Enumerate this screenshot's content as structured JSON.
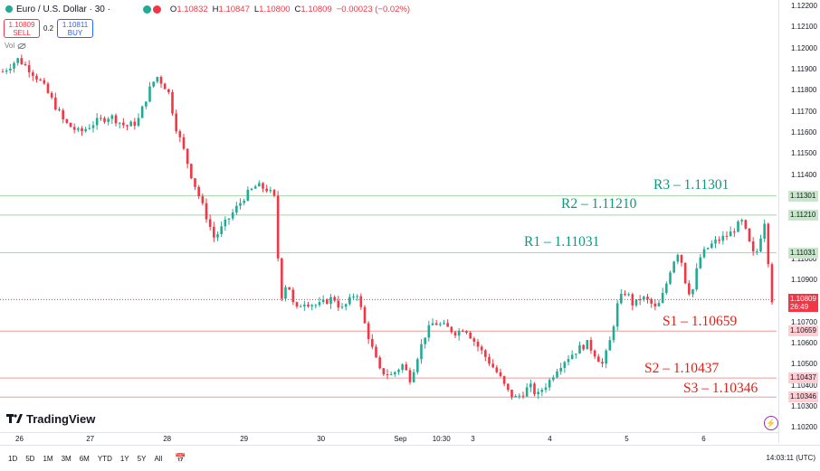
{
  "header": {
    "title": "Euro / U.S. Dollar · 30 ·",
    "ohlc": [
      {
        "label": "O",
        "value": "1.10832"
      },
      {
        "label": "H",
        "value": "1.10847"
      },
      {
        "label": "L",
        "value": "1.10800"
      },
      {
        "label": "C",
        "value": "1.10809"
      },
      {
        "label": "",
        "value": "−0.00023 (−0.02%)"
      }
    ],
    "sell_price": "1.10809",
    "sell_label": "SELL",
    "buy_price": "1.10811",
    "buy_label": "BUY",
    "spread": "0.2",
    "vol_label": "Vol"
  },
  "brand": {
    "name": "TradingView"
  },
  "bottom_bar": {
    "ranges": [
      "1D",
      "5D",
      "1M",
      "3M",
      "6M",
      "YTD",
      "1Y",
      "5Y",
      "All"
    ],
    "clock": "14:03:11 (UTC)"
  },
  "colors": {
    "up": "#22ab94",
    "down": "#f23645",
    "resistance": "#089981",
    "support": "#e32017"
  },
  "chart_data": {
    "type": "candlestick",
    "title": "Euro / U.S. Dollar · 30",
    "ylim": [
      1.1018,
      1.1223
    ],
    "y_ticks": [
      "1.12200",
      "1.12100",
      "1.12000",
      "1.11900",
      "1.11800",
      "1.11700",
      "1.11600",
      "1.11500",
      "1.11400",
      "1.11200",
      "1.11000",
      "1.10900",
      "1.10700",
      "1.10600",
      "1.10500",
      "1.10400",
      "1.10300",
      "1.10200"
    ],
    "x_labels": [
      {
        "label": "26",
        "pos": 0.0
      },
      {
        "label": "27",
        "pos": 0.092
      },
      {
        "label": "28",
        "pos": 0.192
      },
      {
        "label": "29",
        "pos": 0.292
      },
      {
        "label": "30",
        "pos": 0.392
      },
      {
        "label": "Sep",
        "pos": 0.492
      },
      {
        "label": "10:30",
        "pos": 0.542
      },
      {
        "label": "3",
        "pos": 0.592
      },
      {
        "label": "4",
        "pos": 0.692
      },
      {
        "label": "5",
        "pos": 0.792
      },
      {
        "label": "6",
        "pos": 0.892
      }
    ],
    "levels": [
      {
        "name": "R3",
        "label": "R3 – 1.11301",
        "value": 1.11301,
        "tag": "1.11301",
        "kind": "resistance"
      },
      {
        "name": "R2",
        "label": "R2 – 1.11210",
        "value": 1.1121,
        "tag": "1.11210",
        "kind": "resistance"
      },
      {
        "name": "R1",
        "label": "R1 – 1.11031",
        "value": 1.11031,
        "tag": "1.11031",
        "kind": "resistance"
      },
      {
        "name": "S1",
        "label": "S1 – 1.10659",
        "value": 1.10659,
        "tag": "1.10659",
        "kind": "support"
      },
      {
        "name": "S2",
        "label": "S2 – 1.10437",
        "value": 1.10437,
        "tag": "1.10437",
        "kind": "support"
      },
      {
        "name": "S3",
        "label": "S3 – 1.10346",
        "value": 1.10346,
        "tag": "1.10346",
        "kind": "support"
      }
    ],
    "current_price": {
      "value": 1.10809,
      "label": "1.10809",
      "countdown": "26:49"
    },
    "price_path": [
      [
        0.0,
        1.1189
      ],
      [
        0.02,
        1.1195
      ],
      [
        0.035,
        1.119
      ],
      [
        0.05,
        1.1184
      ],
      [
        0.065,
        1.1175
      ],
      [
        0.08,
        1.1165
      ],
      [
        0.1,
        1.116
      ],
      [
        0.12,
        1.1165
      ],
      [
        0.14,
        1.1168
      ],
      [
        0.16,
        1.1163
      ],
      [
        0.175,
        1.1165
      ],
      [
        0.19,
        1.118
      ],
      [
        0.2,
        1.1187
      ],
      [
        0.215,
        1.118
      ],
      [
        0.225,
        1.1163
      ],
      [
        0.235,
        1.1152
      ],
      [
        0.245,
        1.114
      ],
      [
        0.255,
        1.113
      ],
      [
        0.265,
        1.112
      ],
      [
        0.275,
        1.111
      ],
      [
        0.285,
        1.1115
      ],
      [
        0.295,
        1.112
      ],
      [
        0.305,
        1.1125
      ],
      [
        0.315,
        1.113
      ],
      [
        0.33,
        1.1135
      ],
      [
        0.345,
        1.1133
      ],
      [
        0.355,
        1.1128
      ],
      [
        0.36,
        1.108
      ],
      [
        0.37,
        1.109
      ],
      [
        0.38,
        1.1075
      ],
      [
        0.39,
        1.108
      ],
      [
        0.41,
        1.1078
      ],
      [
        0.43,
        1.1082
      ],
      [
        0.44,
        1.1076
      ],
      [
        0.45,
        1.108
      ],
      [
        0.46,
        1.1085
      ],
      [
        0.47,
        1.107
      ],
      [
        0.48,
        1.1058
      ],
      [
        0.49,
        1.1047
      ],
      [
        0.505,
        1.1045
      ],
      [
        0.52,
        1.105
      ],
      [
        0.53,
        1.1043
      ],
      [
        0.54,
        1.1055
      ],
      [
        0.55,
        1.1065
      ],
      [
        0.56,
        1.107
      ],
      [
        0.575,
        1.1068
      ],
      [
        0.59,
        1.1065
      ],
      [
        0.6,
        1.1068
      ],
      [
        0.615,
        1.106
      ],
      [
        0.625,
        1.1055
      ],
      [
        0.635,
        1.105
      ],
      [
        0.645,
        1.1045
      ],
      [
        0.655,
        1.1038
      ],
      [
        0.665,
        1.1034
      ],
      [
        0.675,
        1.1036
      ],
      [
        0.685,
        1.104
      ],
      [
        0.695,
        1.1035
      ],
      [
        0.7,
        1.1038
      ],
      [
        0.71,
        1.1042
      ],
      [
        0.72,
        1.1048
      ],
      [
        0.73,
        1.1052
      ],
      [
        0.74,
        1.1055
      ],
      [
        0.75,
        1.1058
      ],
      [
        0.76,
        1.106
      ],
      [
        0.77,
        1.1055
      ],
      [
        0.78,
        1.105
      ],
      [
        0.79,
        1.1062
      ],
      [
        0.8,
        1.108
      ],
      [
        0.81,
        1.1085
      ],
      [
        0.82,
        1.1078
      ],
      [
        0.83,
        1.1082
      ],
      [
        0.84,
        1.108
      ],
      [
        0.85,
        1.1076
      ],
      [
        0.86,
        1.1085
      ],
      [
        0.87,
        1.1098
      ],
      [
        0.88,
        1.1105
      ],
      [
        0.885,
        1.1092
      ],
      [
        0.895,
        1.1082
      ],
      [
        0.905,
        1.11
      ],
      [
        0.915,
        1.1105
      ],
      [
        0.925,
        1.1108
      ],
      [
        0.935,
        1.111
      ],
      [
        0.945,
        1.1112
      ],
      [
        0.955,
        1.1116
      ],
      [
        0.962,
        1.1118
      ],
      [
        0.968,
        1.111
      ],
      [
        0.973,
        1.1105
      ],
      [
        0.978,
        1.11
      ],
      [
        0.983,
        1.1108
      ],
      [
        0.988,
        1.1115
      ],
      [
        0.99,
        1.1118
      ],
      [
        0.993,
        1.112
      ],
      [
        0.995,
        1.11
      ],
      [
        0.997,
        1.1088
      ],
      [
        1.0,
        1.10809
      ]
    ]
  }
}
